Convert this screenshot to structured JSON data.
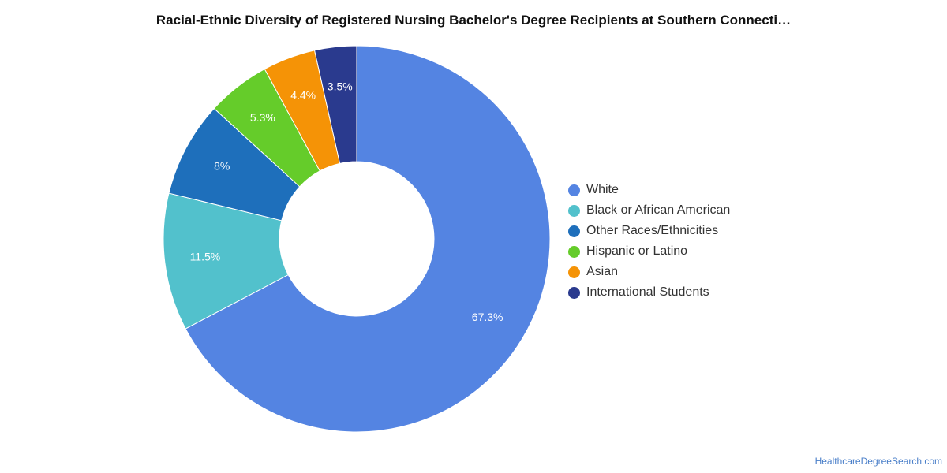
{
  "chart_data": {
    "type": "pie",
    "title": "Racial-Ethnic Diversity of Registered Nursing Bachelor's Degree Recipients at Southern Connecti…",
    "categories": [
      "White",
      "Black or African American",
      "Other Races/Ethnicities",
      "Hispanic or Latino",
      "Asian",
      "International Students"
    ],
    "values": [
      67.3,
      11.5,
      8,
      5.3,
      4.4,
      3.5
    ],
    "data_labels": [
      "67.3%",
      "11.5%",
      "8%",
      "5.3%",
      "4.4%",
      "3.5%"
    ],
    "colors": [
      "#5484e2",
      "#52c1cc",
      "#1e6fbb",
      "#65cc2a",
      "#f59306",
      "#2a3a8e"
    ],
    "donut": true,
    "start": "12 o'clock",
    "direction": "clockwise",
    "legend_position": "right"
  },
  "footer": {
    "source": "HealthcareDegreeSearch.com"
  }
}
